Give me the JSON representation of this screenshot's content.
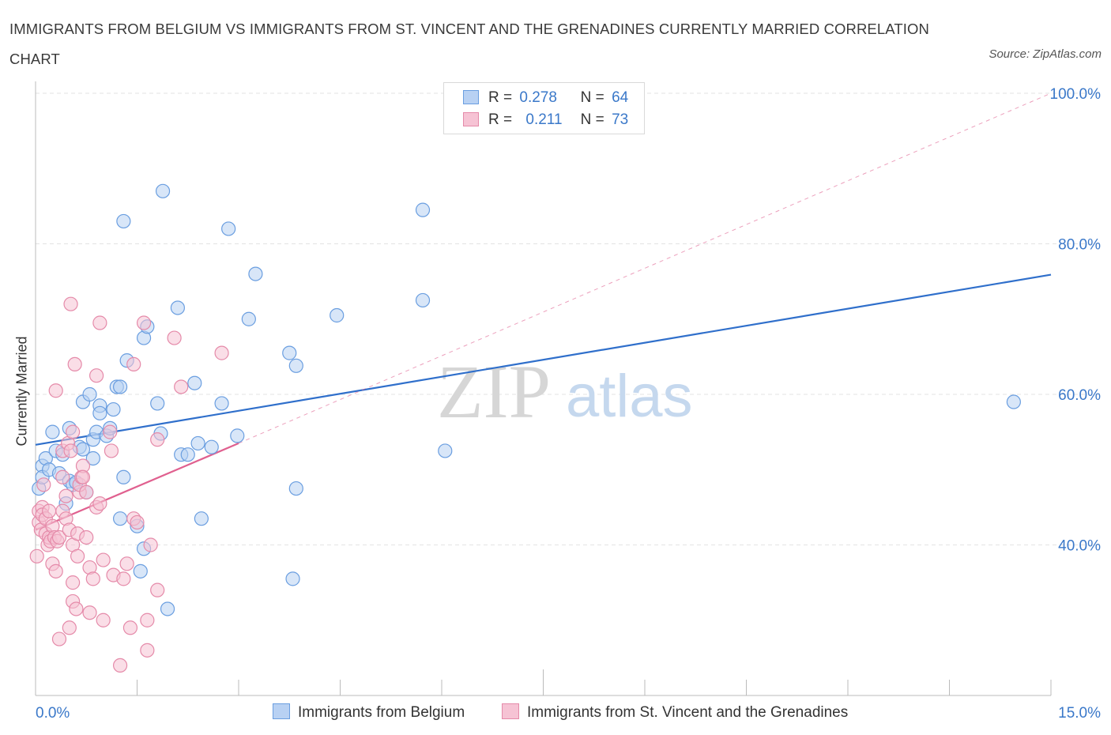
{
  "title": "IMMIGRANTS FROM BELGIUM VS IMMIGRANTS FROM ST. VINCENT AND THE GRENADINES CURRENTLY MARRIED CORRELATION CHART",
  "source": "Source: ZipAtlas.com",
  "watermark": {
    "part1": "ZIP",
    "part2": "atlas"
  },
  "legend": {
    "r_label": "R =",
    "n_label": "N =",
    "items": [
      {
        "name": "Immigrants from Belgium",
        "r": "0.278",
        "n": "64"
      },
      {
        "name": "Immigrants from St. Vincent and the Grenadines",
        "r": "0.211",
        "n": "73"
      }
    ]
  },
  "colors": {
    "belgium_fill": "#b8d1f3",
    "belgium_stroke": "#6a9ee0",
    "belgium_line": "#2f6fcb",
    "svg_fill": "#f6c3d4",
    "svg_stroke": "#e58aa9",
    "svg_line": "#e0608f",
    "axis_text": "#3a78c9",
    "grid": "#e3e3e3"
  },
  "chart_data": {
    "type": "scatter",
    "title": "IMMIGRANTS FROM BELGIUM VS IMMIGRANTS FROM ST. VINCENT AND THE GRENADINES CURRENTLY MARRIED CORRELATION CHART",
    "xlabel": "",
    "ylabel": "Currently Married",
    "xlim": [
      0,
      15
    ],
    "ylim": [
      20,
      100
    ],
    "x_tick_labels": [
      "0.0%",
      "15.0%"
    ],
    "y_ticks": [
      40,
      60,
      80,
      100
    ],
    "y_tick_labels": [
      "40.0%",
      "60.0%",
      "80.0%",
      "100.0%"
    ],
    "grid": true,
    "legend_position": "top-center",
    "series": [
      {
        "name": "Immigrants from Belgium",
        "r": 0.278,
        "n": 64,
        "trend": {
          "x": [
            0,
            15
          ],
          "y": [
            53.3,
            75.9
          ],
          "dashed_extension": false
        },
        "points": [
          [
            0.05,
            47.5
          ],
          [
            0.1,
            50.5
          ],
          [
            0.1,
            49.0
          ],
          [
            0.15,
            51.5
          ],
          [
            0.2,
            50.0
          ],
          [
            0.25,
            55.0
          ],
          [
            0.3,
            52.5
          ],
          [
            0.35,
            49.5
          ],
          [
            0.4,
            52.0
          ],
          [
            0.45,
            45.5
          ],
          [
            0.5,
            48.5
          ],
          [
            0.5,
            55.5
          ],
          [
            0.55,
            48.0
          ],
          [
            0.6,
            48.3
          ],
          [
            0.65,
            53.0
          ],
          [
            0.7,
            52.7
          ],
          [
            0.7,
            59.0
          ],
          [
            0.75,
            47.0
          ],
          [
            0.8,
            60.0
          ],
          [
            0.85,
            54.0
          ],
          [
            0.85,
            51.5
          ],
          [
            0.9,
            55.0
          ],
          [
            0.95,
            58.5
          ],
          [
            0.95,
            57.5
          ],
          [
            1.05,
            54.5
          ],
          [
            1.1,
            55.5
          ],
          [
            1.15,
            58.0
          ],
          [
            1.2,
            61.0
          ],
          [
            1.25,
            43.5
          ],
          [
            1.25,
            61.0
          ],
          [
            1.3,
            49.0
          ],
          [
            1.3,
            83.0
          ],
          [
            1.35,
            64.5
          ],
          [
            1.5,
            42.5
          ],
          [
            1.55,
            36.5
          ],
          [
            1.6,
            39.5
          ],
          [
            1.6,
            67.5
          ],
          [
            1.65,
            69.0
          ],
          [
            1.8,
            58.8
          ],
          [
            1.85,
            54.8
          ],
          [
            1.88,
            87.0
          ],
          [
            1.95,
            31.5
          ],
          [
            2.1,
            71.5
          ],
          [
            2.15,
            52.0
          ],
          [
            2.25,
            52.0
          ],
          [
            2.35,
            61.5
          ],
          [
            2.4,
            53.5
          ],
          [
            2.45,
            43.5
          ],
          [
            2.6,
            53.0
          ],
          [
            2.75,
            58.8
          ],
          [
            2.85,
            82.0
          ],
          [
            2.98,
            54.5
          ],
          [
            3.15,
            70.0
          ],
          [
            3.25,
            76.0
          ],
          [
            3.75,
            65.5
          ],
          [
            3.8,
            35.5
          ],
          [
            3.85,
            63.8
          ],
          [
            3.85,
            47.5
          ],
          [
            4.45,
            70.5
          ],
          [
            5.72,
            84.5
          ],
          [
            5.72,
            72.5
          ],
          [
            6.05,
            52.5
          ],
          [
            14.45,
            59.0
          ]
        ]
      },
      {
        "name": "Immigrants from St. Vincent and the Grenadines",
        "r": 0.211,
        "n": 73,
        "trend": {
          "x": [
            0,
            3.0
          ],
          "y": [
            42.0,
            53.5
          ],
          "dashed_extension": true,
          "dashed_to": {
            "x": 15,
            "y": 100
          }
        },
        "points": [
          [
            0.02,
            38.5
          ],
          [
            0.05,
            43.0
          ],
          [
            0.05,
            44.5
          ],
          [
            0.08,
            42.0
          ],
          [
            0.1,
            45.0
          ],
          [
            0.1,
            44.0
          ],
          [
            0.12,
            48.0
          ],
          [
            0.15,
            41.5
          ],
          [
            0.15,
            43.5
          ],
          [
            0.18,
            40.0
          ],
          [
            0.2,
            41.0
          ],
          [
            0.2,
            44.5
          ],
          [
            0.22,
            40.5
          ],
          [
            0.25,
            37.5
          ],
          [
            0.25,
            42.5
          ],
          [
            0.28,
            41.0
          ],
          [
            0.3,
            36.5
          ],
          [
            0.3,
            60.5
          ],
          [
            0.32,
            40.5
          ],
          [
            0.35,
            27.5
          ],
          [
            0.35,
            41.0
          ],
          [
            0.4,
            49.0
          ],
          [
            0.4,
            44.5
          ],
          [
            0.4,
            52.5
          ],
          [
            0.45,
            46.5
          ],
          [
            0.45,
            43.5
          ],
          [
            0.48,
            53.5
          ],
          [
            0.5,
            29.0
          ],
          [
            0.5,
            42.0
          ],
          [
            0.52,
            72.0
          ],
          [
            0.52,
            52.5
          ],
          [
            0.55,
            55.0
          ],
          [
            0.55,
            35.0
          ],
          [
            0.55,
            32.5
          ],
          [
            0.55,
            40.0
          ],
          [
            0.58,
            64.0
          ],
          [
            0.6,
            31.5
          ],
          [
            0.62,
            41.5
          ],
          [
            0.62,
            38.5
          ],
          [
            0.65,
            47.0
          ],
          [
            0.65,
            48.0
          ],
          [
            0.68,
            49.0
          ],
          [
            0.7,
            50.5
          ],
          [
            0.7,
            49.0
          ],
          [
            0.75,
            47.0
          ],
          [
            0.75,
            41.0
          ],
          [
            0.8,
            31.0
          ],
          [
            0.8,
            37.0
          ],
          [
            0.85,
            35.5
          ],
          [
            0.9,
            62.5
          ],
          [
            0.9,
            45.0
          ],
          [
            0.95,
            69.5
          ],
          [
            0.95,
            45.5
          ],
          [
            1.0,
            30.0
          ],
          [
            1.0,
            38.0
          ],
          [
            1.1,
            55.0
          ],
          [
            1.12,
            52.5
          ],
          [
            1.15,
            36.0
          ],
          [
            1.25,
            24.0
          ],
          [
            1.3,
            35.5
          ],
          [
            1.35,
            37.5
          ],
          [
            1.4,
            29.0
          ],
          [
            1.45,
            64.0
          ],
          [
            1.45,
            43.5
          ],
          [
            1.5,
            43.0
          ],
          [
            1.6,
            69.5
          ],
          [
            1.65,
            30.0
          ],
          [
            1.65,
            26.0
          ],
          [
            1.7,
            40.0
          ],
          [
            1.8,
            34.0
          ],
          [
            1.8,
            54.0
          ],
          [
            2.05,
            67.5
          ],
          [
            2.15,
            61.0
          ],
          [
            2.75,
            65.5
          ]
        ]
      }
    ]
  }
}
